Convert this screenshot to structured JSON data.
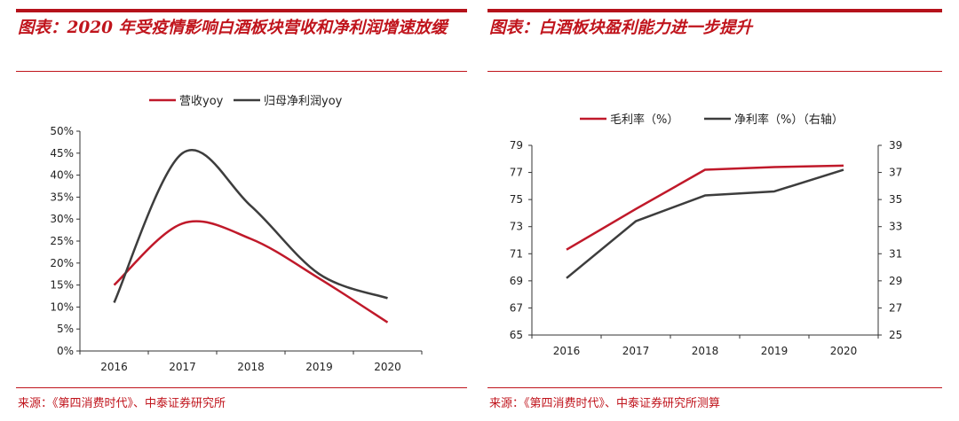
{
  "left_panel": {
    "title": "图表：2020 年受疫情影响白酒板块营收和净利润增速放缓",
    "source": "来源：《第四消费时代》、中泰证券研究所",
    "chart_data": {
      "type": "line",
      "categories": [
        "2016",
        "2017",
        "2018",
        "2019",
        "2020"
      ],
      "series": [
        {
          "name": "营收yoy",
          "values": [
            15,
            29,
            25.5,
            16.5,
            6.5
          ],
          "color": "#c0192a"
        },
        {
          "name": "归母净利润yoy",
          "values": [
            11,
            45,
            33,
            17.5,
            12
          ],
          "color": "#3d3d3d"
        }
      ],
      "yticks": [
        "0%",
        "5%",
        "10%",
        "15%",
        "20%",
        "25%",
        "30%",
        "35%",
        "40%",
        "45%",
        "50%"
      ],
      "ylim": [
        0,
        50
      ],
      "smooth": true,
      "legend": "top"
    }
  },
  "right_panel": {
    "title": "图表：白酒板块盈利能力进一步提升",
    "source": "来源：《第四消费时代》、中泰证券研究所测算",
    "chart_data": {
      "type": "line",
      "categories": [
        "2016",
        "2017",
        "2018",
        "2019",
        "2020"
      ],
      "series": [
        {
          "name": "毛利率（%）",
          "values": [
            71.3,
            74.3,
            77.2,
            77.4,
            77.5
          ],
          "axis": "left",
          "color": "#c0192a"
        },
        {
          "name": "净利率（%）（右轴）",
          "values": [
            29.2,
            33.4,
            35.3,
            35.6,
            37.2
          ],
          "axis": "right",
          "color": "#3d3d3d"
        }
      ],
      "yticks_left": [
        "65",
        "67",
        "69",
        "71",
        "73",
        "75",
        "77",
        "79"
      ],
      "yticks_right": [
        "25",
        "27",
        "29",
        "31",
        "33",
        "35",
        "37",
        "39"
      ],
      "ylim_left": [
        65,
        79
      ],
      "ylim_right": [
        25,
        39
      ],
      "smooth": false,
      "legend": "top"
    }
  }
}
